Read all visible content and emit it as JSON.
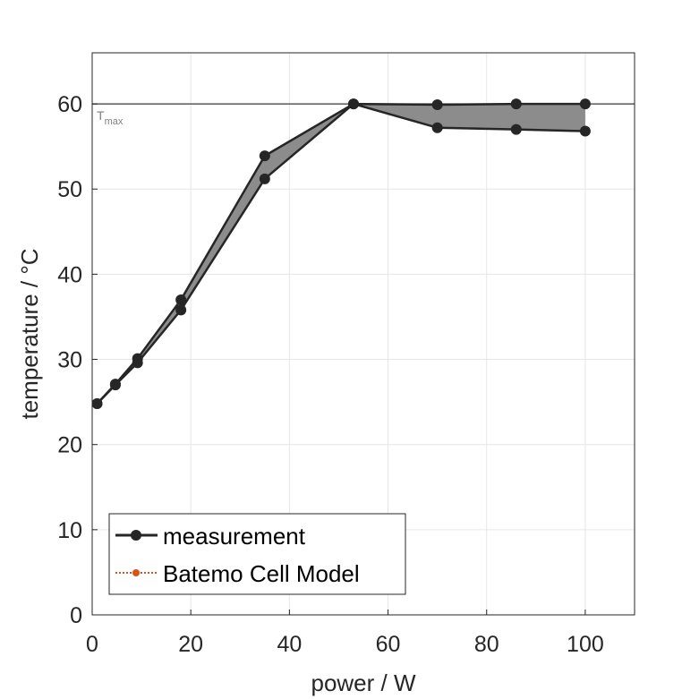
{
  "chart_data": {
    "type": "line",
    "title": "",
    "xlabel": "power / W",
    "ylabel": "temperature / °C",
    "xlim": [
      0,
      110
    ],
    "ylim": [
      0,
      66
    ],
    "xticks": [
      0,
      20,
      40,
      60,
      80,
      100
    ],
    "yticks": [
      0,
      10,
      20,
      30,
      40,
      50,
      60
    ],
    "grid": true,
    "reference_line": {
      "y": 60,
      "label_main": "T",
      "label_sub": "max"
    },
    "series": [
      {
        "name": "measurement",
        "color": "#262626",
        "marker": "circle",
        "upper": [
          {
            "x": 1,
            "y": 24.8
          },
          {
            "x": 4.7,
            "y": 27.1
          },
          {
            "x": 9.2,
            "y": 30.1
          },
          {
            "x": 18,
            "y": 37.0
          },
          {
            "x": 35,
            "y": 53.9
          },
          {
            "x": 53,
            "y": 60.0
          },
          {
            "x": 70,
            "y": 59.9
          },
          {
            "x": 86,
            "y": 60.0
          },
          {
            "x": 100,
            "y": 60.0
          }
        ],
        "lower": [
          {
            "x": 1,
            "y": 24.8
          },
          {
            "x": 4.7,
            "y": 27.0
          },
          {
            "x": 9.2,
            "y": 29.6
          },
          {
            "x": 18,
            "y": 35.8
          },
          {
            "x": 35,
            "y": 51.2
          },
          {
            "x": 53,
            "y": 60.0
          },
          {
            "x": 70,
            "y": 57.2
          },
          {
            "x": 86,
            "y": 57.0
          },
          {
            "x": 100,
            "y": 56.8
          }
        ],
        "fill_color": "#8c8c8c"
      },
      {
        "name": "Batemo Cell Model",
        "color": "#d95319",
        "marker": "circle",
        "linestyle": "dotted",
        "points": []
      }
    ],
    "legend": {
      "position": "bottom-left",
      "entries": [
        "measurement",
        "Batemo Cell Model"
      ]
    }
  }
}
